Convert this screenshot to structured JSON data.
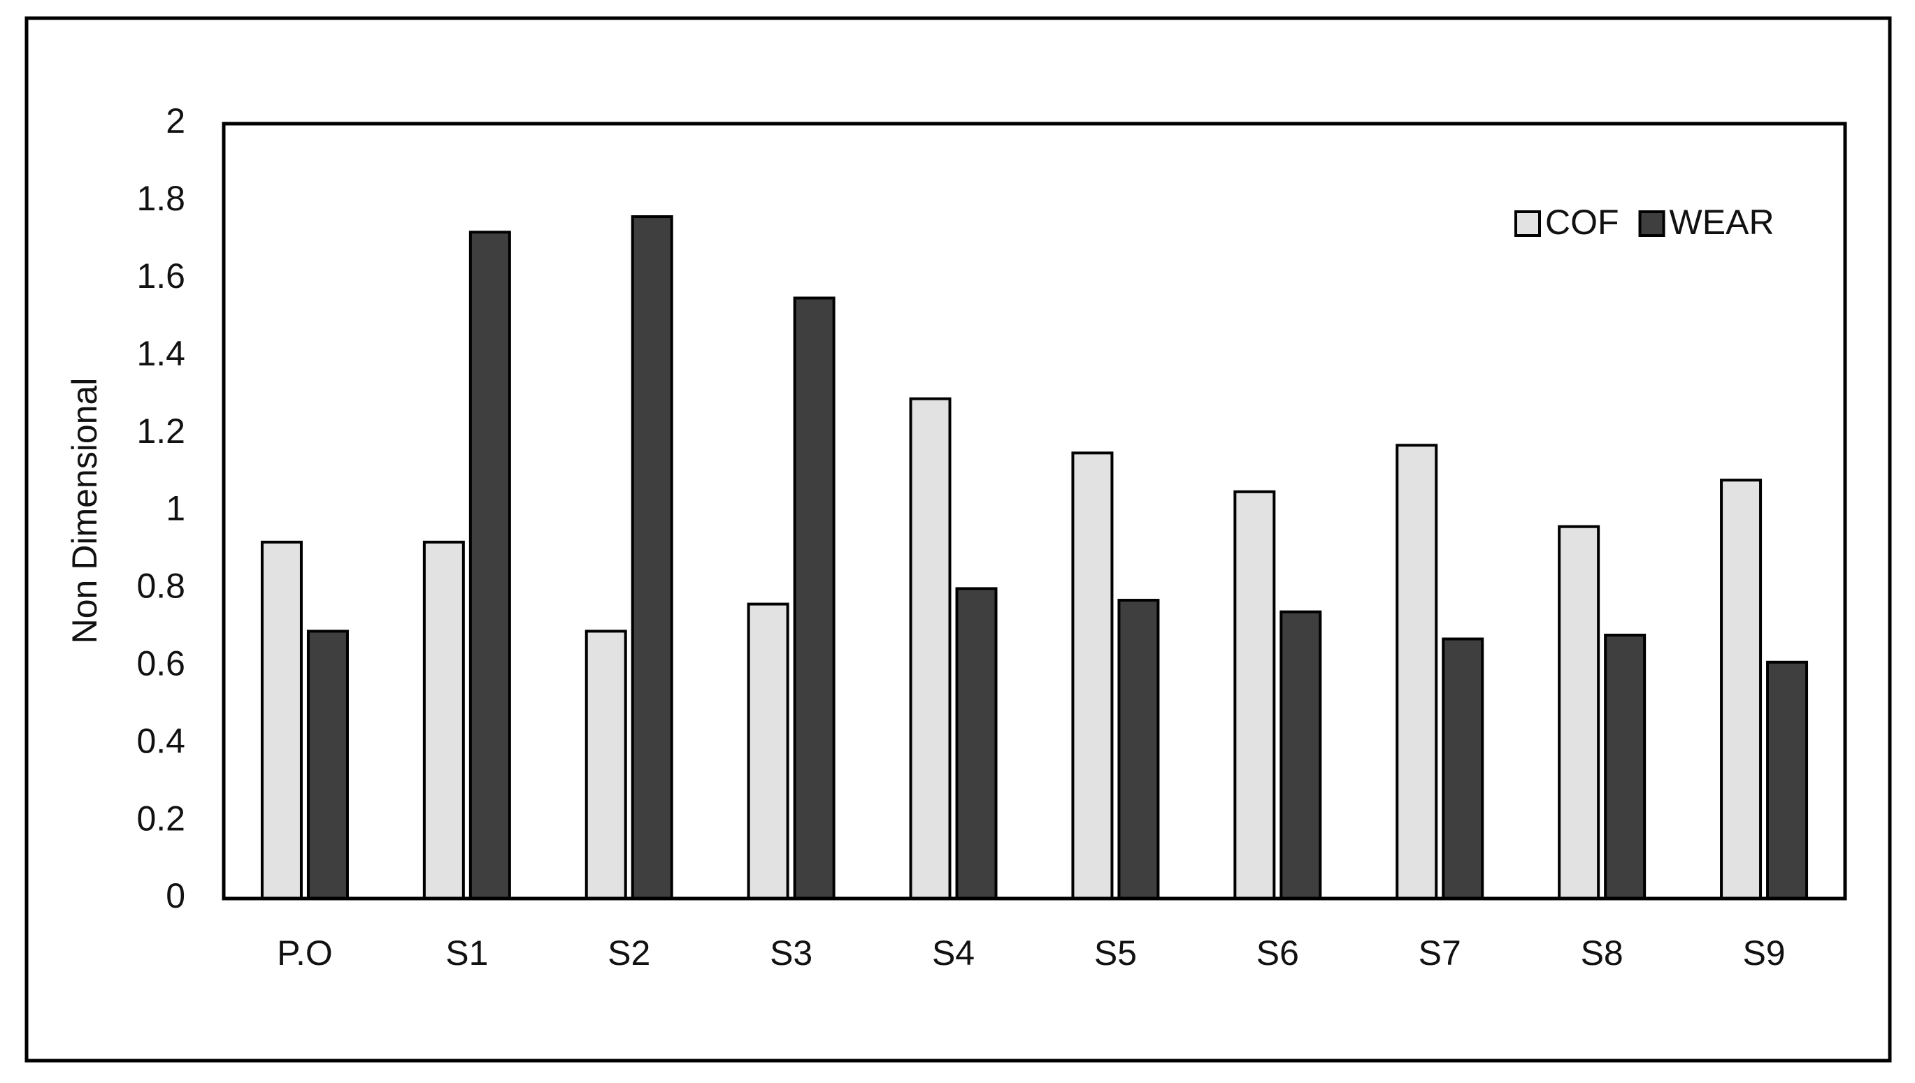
{
  "chart_data": {
    "type": "bar",
    "y_label": "Non Dimensional",
    "categories": [
      "P.O",
      "S1",
      "S2",
      "S3",
      "S4",
      "S5",
      "S6",
      "S7",
      "S8",
      "S9"
    ],
    "series": [
      {
        "name": "COF",
        "color": "#e2e2e2",
        "values": [
          0.92,
          0.92,
          0.69,
          0.76,
          1.29,
          1.15,
          1.05,
          1.17,
          0.96,
          1.08
        ]
      },
      {
        "name": "WEAR",
        "color": "#3f3f3f",
        "values": [
          0.69,
          1.72,
          1.76,
          1.55,
          0.8,
          0.77,
          0.74,
          0.67,
          0.68,
          0.61
        ]
      }
    ],
    "ylim": [
      0,
      2
    ],
    "yticks": [
      0,
      0.2,
      0.4,
      0.6,
      0.8,
      1,
      1.2,
      1.4,
      1.6,
      1.8,
      2
    ],
    "grid": false,
    "legend": "top-right"
  }
}
